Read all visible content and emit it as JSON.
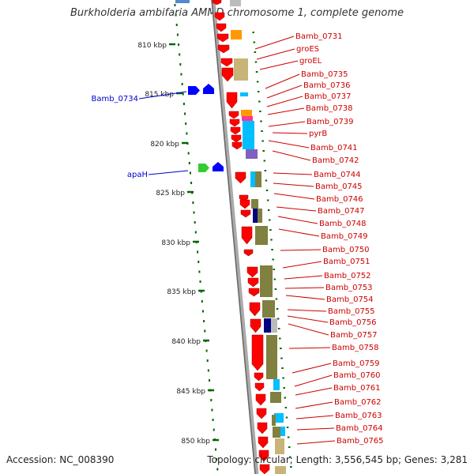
{
  "title": "Burkholderia ambifaria AMMD chromosome 1, complete genome",
  "accession": "Accession: NC_008390",
  "topology": "Topology: circular; Length: 3,556,545 bp; Genes: 3,281",
  "colors": {
    "red": "#ff0000",
    "olive": "#808040",
    "khaki": "#c8b478",
    "cyan": "#00bfff",
    "navy": "#000080",
    "blue": "#0000ff",
    "green": "#33cc33",
    "orange": "#ff9900",
    "purple": "#7f5fbf",
    "tickGreen": "#006600",
    "labelRed": "#cc0000",
    "labelBlue": "#0000cc"
  },
  "scale_labels": [
    "810 kbp",
    "815 kbp",
    "820 kbp",
    "825 kbp",
    "830 kbp",
    "835 kbp",
    "840 kbp",
    "845 kbp",
    "850 kbp"
  ],
  "right_labels": [
    "Bamb_0731",
    "groES",
    "groEL",
    "Bamb_0735",
    "Bamb_0736",
    "Bamb_0737",
    "Bamb_0738",
    "Bamb_0739",
    "pyrB",
    "Bamb_0741",
    "Bamb_0742",
    "Bamb_0744",
    "Bamb_0745",
    "Bamb_0746",
    "Bamb_0747",
    "Bamb_0748",
    "Bamb_0749",
    "Bamb_0750",
    "Bamb_0751",
    "Bamb_0752",
    "Bamb_0753",
    "Bamb_0754",
    "Bamb_0755",
    "Bamb_0756",
    "Bamb_0757",
    "Bamb_0758",
    "Bamb_0759",
    "Bamb_0760",
    "Bamb_0761",
    "Bamb_0762",
    "Bamb_0763",
    "Bamb_0764",
    "Bamb_0765"
  ],
  "left_labels": [
    "Bamb_0734",
    "apaH"
  ]
}
